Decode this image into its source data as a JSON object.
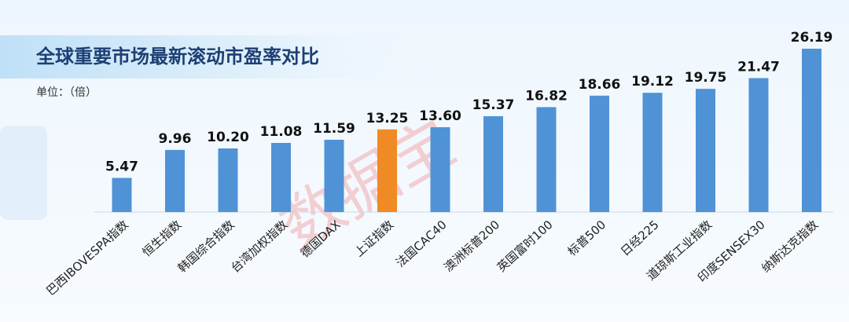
{
  "chart_data": {
    "type": "bar",
    "title": "全球重要市场最新滚动市盈率对比",
    "subtitle": "单位：（倍）",
    "watermark": "数据宝",
    "categories": [
      "巴西IBOVESPA指数",
      "恒生指数",
      "韩国综合指数",
      "台湾加权指数",
      "德国DAX",
      "上证指数",
      "法国CAC40",
      "澳洲标普200",
      "英国富时100",
      "标普500",
      "日经225",
      "道琼斯工业指数",
      "印度SENSEX30",
      "纳斯达克指数"
    ],
    "values": [
      5.47,
      9.96,
      10.2,
      11.08,
      11.59,
      13.25,
      13.6,
      15.37,
      16.82,
      18.66,
      19.12,
      19.75,
      21.47,
      26.19
    ],
    "value_labels": [
      "5.47",
      "9.96",
      "10.20",
      "11.08",
      "11.59",
      "13.25",
      "13.60",
      "15.37",
      "16.82",
      "18.66",
      "19.12",
      "19.75",
      "21.47",
      "26.19"
    ],
    "colors": [
      "#4f93d6",
      "#4f93d6",
      "#4f93d6",
      "#4f93d6",
      "#4f93d6",
      "#f08a24",
      "#4f93d6",
      "#4f93d6",
      "#4f93d6",
      "#4f93d6",
      "#4f93d6",
      "#4f93d6",
      "#4f93d6",
      "#4f93d6"
    ]
  }
}
